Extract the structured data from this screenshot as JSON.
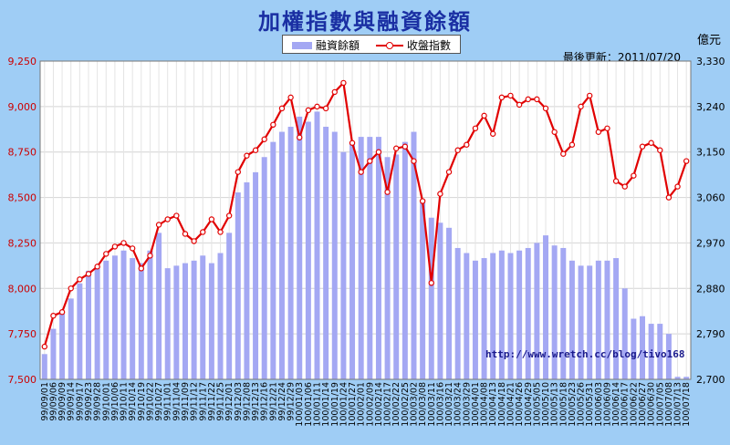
{
  "title": "加權指數與融資餘額",
  "legend": {
    "bar_label": "融資餘額",
    "line_label": "收盤指數"
  },
  "right_unit": "億元",
  "updated": "最後更新：2011/07/20",
  "watermark": "http://www.wretch.cc/blog/tivo168",
  "colors": {
    "bar": "#a4a8f3",
    "line": "#e10000",
    "plot_bg": "#ffffff",
    "left_ticks": "#cc0000",
    "right_ticks": "#000000"
  },
  "chart_data": {
    "type": "bar",
    "grid": true,
    "legend_position": "top",
    "left_axis": {
      "series": "收盤指數",
      "ylim": [
        7500,
        9250
      ],
      "ticks": [
        "7,500",
        "7,750",
        "8,000",
        "8,250",
        "8,500",
        "8,750",
        "9,000",
        "9,250"
      ]
    },
    "right_axis": {
      "series": "融資餘額",
      "ylim": [
        2700,
        3330
      ],
      "ticks": [
        "2,700",
        "2,790",
        "2,880",
        "2,970",
        "3,060",
        "3,150",
        "3,240",
        "3,330"
      ]
    },
    "categories": [
      "99/09/01",
      "99/09/06",
      "99/09/09",
      "99/09/14",
      "99/09/17",
      "99/09/23",
      "99/09/28",
      "99/10/01",
      "99/10/06",
      "99/10/11",
      "99/10/14",
      "99/10/19",
      "99/10/22",
      "99/10/27",
      "99/11/01",
      "99/11/04",
      "99/11/09",
      "99/11/12",
      "99/11/17",
      "99/11/22",
      "99/11/25",
      "99/12/01",
      "99/12/03",
      "99/12/08",
      "99/12/13",
      "99/12/16",
      "99/12/21",
      "99/12/24",
      "99/12/29",
      "100/01/03",
      "100/01/06",
      "100/01/11",
      "100/01/14",
      "100/01/19",
      "100/01/24",
      "100/01/27",
      "100/02/01",
      "100/02/09",
      "100/02/14",
      "100/02/17",
      "100/02/22",
      "100/02/25",
      "100/03/02",
      "100/03/08",
      "100/03/11",
      "100/03/16",
      "100/03/21",
      "100/03/24",
      "100/03/29",
      "100/04/01",
      "100/04/08",
      "100/04/13",
      "100/04/18",
      "100/04/21",
      "100/04/26",
      "100/04/29",
      "100/05/05",
      "100/05/10",
      "100/05/13",
      "100/05/18",
      "100/05/23",
      "100/05/26",
      "100/05/31",
      "100/06/03",
      "100/06/09",
      "100/06/14",
      "100/06/17",
      "100/06/22",
      "100/06/27",
      "100/06/30",
      "100/07/05",
      "100/07/08",
      "100/07/13",
      "100/07/18"
    ],
    "series": [
      {
        "name": "收盤指數",
        "axis": "left",
        "type": "line",
        "values": [
          7680,
          7850,
          7870,
          8000,
          8050,
          8080,
          8120,
          8190,
          8230,
          8250,
          8220,
          8110,
          8180,
          8350,
          8380,
          8400,
          8300,
          8260,
          8310,
          8380,
          8310,
          8400,
          8640,
          8730,
          8760,
          8820,
          8900,
          8990,
          9050,
          8830,
          8980,
          9000,
          8990,
          9080,
          9130,
          8800,
          8640,
          8700,
          8750,
          8530,
          8770,
          8780,
          8700,
          8480,
          8030,
          8520,
          8640,
          8760,
          8790,
          8880,
          8950,
          8850,
          9050,
          9060,
          9010,
          9040,
          9040,
          8990,
          8860,
          8740,
          8790,
          9000,
          9060,
          8860,
          8880,
          8590,
          8560,
          8620,
          8780,
          8800,
          8760,
          8500,
          8560,
          8700
        ]
      },
      {
        "name": "融資餘額",
        "axis": "right",
        "type": "bar",
        "values": [
          2750,
          2800,
          2830,
          2860,
          2890,
          2915,
          2925,
          2935,
          2945,
          2955,
          2940,
          2930,
          2955,
          2990,
          2920,
          2925,
          2930,
          2935,
          2945,
          2930,
          2950,
          2990,
          3070,
          3090,
          3110,
          3140,
          3170,
          3190,
          3200,
          3220,
          3210,
          3230,
          3200,
          3190,
          3150,
          3170,
          3180,
          3180,
          3180,
          3140,
          3145,
          3170,
          3190,
          3050,
          3020,
          3010,
          3000,
          2960,
          2950,
          2935,
          2940,
          2950,
          2955,
          2950,
          2955,
          2960,
          2970,
          2985,
          2965,
          2960,
          2935,
          2925,
          2925,
          2935,
          2935,
          2940,
          2880,
          2820,
          2825,
          2810,
          2810,
          2790,
          2705,
          2705
        ]
      }
    ]
  }
}
